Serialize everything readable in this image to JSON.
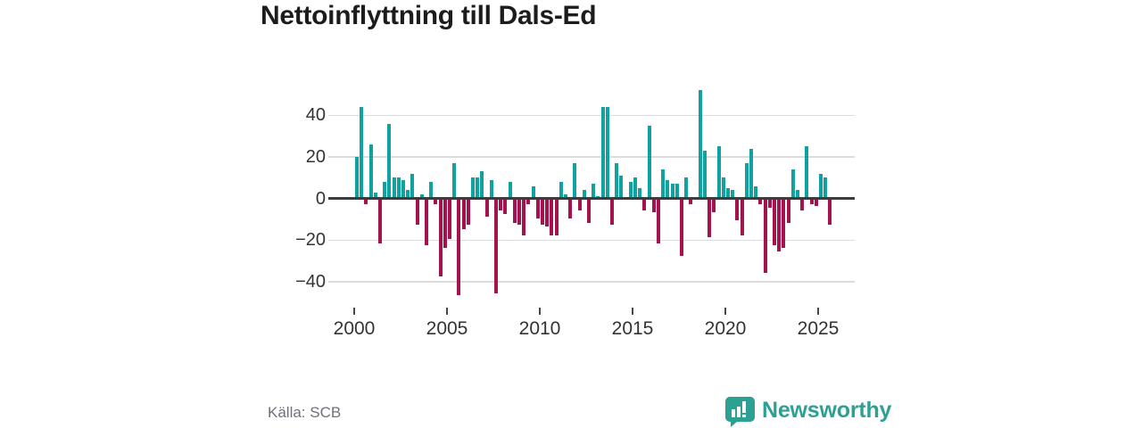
{
  "title": "Nettoinflyttning till Dals-Ed",
  "source": "Källa: SCB",
  "brand": {
    "name": "Newsworthy",
    "icon": "speech-bubble-bar-chart",
    "color": "#2da094"
  },
  "chart_data": {
    "type": "bar",
    "title": "Nettoinflyttning till Dals-Ed",
    "frequency": "quarterly",
    "x_start": {
      "year": 2000,
      "quarter": 1
    },
    "x_end": {
      "year": 2025,
      "quarter": 3
    },
    "x_tick_labels": [
      "2000",
      "2005",
      "2010",
      "2015",
      "2020",
      "2025"
    ],
    "y_ticks": [
      {
        "value": 40,
        "label": "40"
      },
      {
        "value": 20,
        "label": "20"
      },
      {
        "value": 0,
        "label": "0"
      },
      {
        "value": -20,
        "label": "−20"
      },
      {
        "value": -40,
        "label": "−40"
      }
    ],
    "ylim": [
      -48,
      55
    ],
    "grid": true,
    "legend": false,
    "positive_color": "#10a2a0",
    "negative_color": "#a4134e",
    "series": [
      {
        "name": "Nettoinflyttning",
        "years": [
          {
            "year": 2000,
            "q": [
              20,
              44,
              -2,
              26
            ]
          },
          {
            "year": 2001,
            "q": [
              3,
              -21,
              8,
              36
            ]
          },
          {
            "year": 2002,
            "q": [
              10,
              10,
              9,
              4
            ]
          },
          {
            "year": 2003,
            "q": [
              12,
              -12,
              2,
              -22
            ]
          },
          {
            "year": 2004,
            "q": [
              8,
              -2,
              -37,
              -23
            ]
          },
          {
            "year": 2005,
            "q": [
              -19,
              17,
              -46,
              -14
            ]
          },
          {
            "year": 2006,
            "q": [
              -12,
              10,
              10,
              13
            ]
          },
          {
            "year": 2007,
            "q": [
              -8,
              9,
              -45,
              -5
            ]
          },
          {
            "year": 2008,
            "q": [
              -7,
              8,
              -11,
              -12
            ]
          },
          {
            "year": 2009,
            "q": [
              -17,
              -2,
              6,
              -9
            ]
          },
          {
            "year": 2010,
            "q": [
              -12,
              -13,
              -17,
              -17
            ]
          },
          {
            "year": 2011,
            "q": [
              8,
              2,
              -9,
              17
            ]
          },
          {
            "year": 2012,
            "q": [
              -5,
              4,
              -11,
              7
            ]
          },
          {
            "year": 2013,
            "q": [
              1,
              44,
              44,
              -12
            ]
          },
          {
            "year": 2014,
            "q": [
              17,
              11,
              0,
              8
            ]
          },
          {
            "year": 2015,
            "q": [
              10,
              5,
              -5,
              35
            ]
          },
          {
            "year": 2016,
            "q": [
              -6,
              -21,
              14,
              9
            ]
          },
          {
            "year": 2017,
            "q": [
              7,
              7,
              -27,
              10
            ]
          },
          {
            "year": 2018,
            "q": [
              -2,
              0,
              52,
              23
            ]
          },
          {
            "year": 2019,
            "q": [
              -18,
              -6,
              25,
              10
            ]
          },
          {
            "year": 2020,
            "q": [
              5,
              4,
              -10,
              -17
            ]
          },
          {
            "year": 2021,
            "q": [
              17,
              24,
              6,
              -2
            ]
          },
          {
            "year": 2022,
            "q": [
              -35,
              -4,
              -22,
              -25
            ]
          },
          {
            "year": 2023,
            "q": [
              -23,
              -11,
              14,
              4
            ]
          },
          {
            "year": 2024,
            "q": [
              -5,
              25,
              -2,
              -3
            ]
          },
          {
            "year": 2025,
            "q": [
              12,
              10,
              -12
            ]
          }
        ]
      }
    ]
  }
}
